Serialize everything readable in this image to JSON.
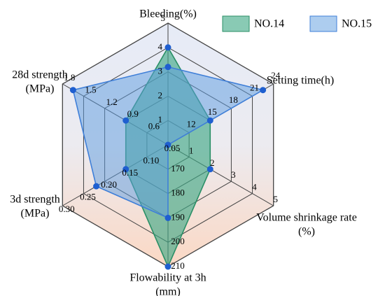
{
  "chart_data": {
    "type": "radar",
    "title": "",
    "axes": [
      {
        "label_lines": [
          "Bleeding(%)"
        ],
        "min": 0,
        "max": 5,
        "ticks": [
          "1",
          "2",
          "3",
          "4",
          "5"
        ]
      },
      {
        "label_lines": [
          "Setting time(h)"
        ],
        "min": 9,
        "max": 24,
        "ticks": [
          "12",
          "15",
          "18",
          "21",
          "24"
        ]
      },
      {
        "label_lines": [
          "Volume shrinkage rate",
          "(%)"
        ],
        "min": 0,
        "max": 5,
        "ticks": [
          "1",
          "2",
          "3",
          "4",
          "5"
        ]
      },
      {
        "label_lines": [
          "Flowability at 3h",
          "(mm)"
        ],
        "min": 160,
        "max": 210,
        "ticks": [
          "170",
          "180",
          "190",
          "200",
          "210"
        ]
      },
      {
        "label_lines": [
          "3d strength",
          "(MPa)"
        ],
        "min": 0.05,
        "max": 0.3,
        "ticks": [
          "0.05",
          "0.10",
          "0.15",
          "0.20",
          "0.25",
          "0.30"
        ]
      },
      {
        "label_lines": [
          "28d strength",
          "(MPa)"
        ],
        "min": 0.3,
        "max": 1.8,
        "ticks": [
          "0.6",
          "0.9",
          "1.2",
          "1.5",
          "1.8"
        ]
      }
    ],
    "series": [
      {
        "name": "NO.14",
        "fill": "#3aa682",
        "stroke": "#2a8f66",
        "values": [
          4.0,
          15,
          2.0,
          210,
          0.15,
          0.9
        ]
      },
      {
        "name": "NO.15",
        "fill": "#5b9be0",
        "stroke": "#3f7fd8",
        "values": [
          3.2,
          22.5,
          0.0,
          190,
          0.22,
          1.65
        ]
      }
    ],
    "point_color": "#1f5fd0",
    "grid": true,
    "legend_position": "top-right"
  }
}
